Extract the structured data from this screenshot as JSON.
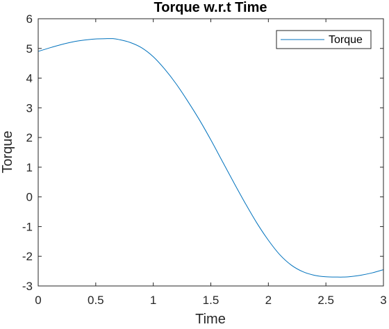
{
  "chart_data": {
    "type": "line",
    "title": "Torque w.r.t Time",
    "xlabel": "Time",
    "ylabel": "Torque",
    "xlim": [
      0,
      3
    ],
    "ylim": [
      -3,
      6
    ],
    "xticks": [
      0,
      0.5,
      1,
      1.5,
      2,
      2.5,
      3
    ],
    "xtick_labels": [
      "0",
      "0.5",
      "1",
      "1.5",
      "2",
      "2.5",
      "3"
    ],
    "yticks": [
      -3,
      -2,
      -1,
      0,
      1,
      2,
      3,
      4,
      5,
      6
    ],
    "ytick_labels": [
      "-3",
      "-2",
      "-1",
      "0",
      "1",
      "2",
      "3",
      "4",
      "5",
      "6"
    ],
    "grid": false,
    "legend_position": "top-right",
    "series": [
      {
        "name": "Torque",
        "color": "#0072BD",
        "x": [
          0,
          0.1,
          0.2,
          0.3,
          0.4,
          0.5,
          0.6,
          0.65,
          0.7,
          0.8,
          0.9,
          1.0,
          1.1,
          1.2,
          1.3,
          1.4,
          1.5,
          1.6,
          1.7,
          1.8,
          1.9,
          2.0,
          2.1,
          2.2,
          2.3,
          2.4,
          2.5,
          2.6,
          2.65,
          2.7,
          2.8,
          2.9,
          3.0
        ],
        "y": [
          4.9,
          5.02,
          5.13,
          5.22,
          5.28,
          5.32,
          5.33,
          5.33,
          5.3,
          5.2,
          5.02,
          4.72,
          4.3,
          3.8,
          3.22,
          2.6,
          1.92,
          1.2,
          0.48,
          -0.22,
          -0.88,
          -1.46,
          -1.95,
          -2.3,
          -2.52,
          -2.64,
          -2.69,
          -2.7,
          -2.7,
          -2.69,
          -2.64,
          -2.56,
          -2.45
        ]
      }
    ]
  }
}
